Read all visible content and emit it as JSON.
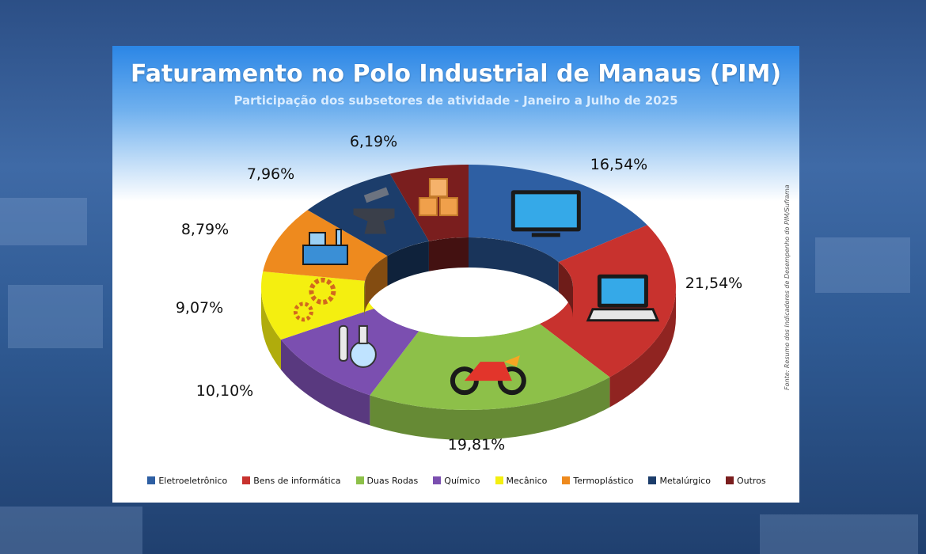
{
  "chart_data": {
    "type": "pie",
    "variant": "donut-3d",
    "title": "Faturamento no Polo Industrial de Manaus (PIM)",
    "subtitle": "Participação dos subsetores de atividade - Janeiro a Julho de 2025",
    "source": "Fonte: Resumo dos Indicadores de Desempenho do PIM/Suframa",
    "legend_position": "bottom",
    "slices": [
      {
        "name": "Eletroeletrônico",
        "value": 16.54,
        "label": "16,54%",
        "color": "#2e5fa3",
        "icon": "tv-icon"
      },
      {
        "name": "Bens de informática",
        "value": 21.54,
        "label": "21,54%",
        "color": "#c8322e",
        "icon": "laptop-icon"
      },
      {
        "name": "Duas Rodas",
        "value": 19.81,
        "label": "19,81%",
        "color": "#8dc049",
        "icon": "motorcycle-icon"
      },
      {
        "name": "Químico",
        "value": 10.1,
        "label": "10,10%",
        "color": "#7b4fb0",
        "icon": "flask-icon"
      },
      {
        "name": "Mecânico",
        "value": 9.07,
        "label": "9,07%",
        "color": "#f4ef10",
        "icon": "gears-icon"
      },
      {
        "name": "Termoplástico",
        "value": 8.79,
        "label": "8,79%",
        "color": "#ee8a1e",
        "icon": "machine-icon"
      },
      {
        "name": "Metalúrgico",
        "value": 7.96,
        "label": "7,96%",
        "color": "#1c3d6b",
        "icon": "anvil-icon"
      },
      {
        "name": "Outros",
        "value": 6.19,
        "label": "6,19%",
        "color": "#7a1e1e",
        "icon": "boxes-icon"
      }
    ]
  }
}
